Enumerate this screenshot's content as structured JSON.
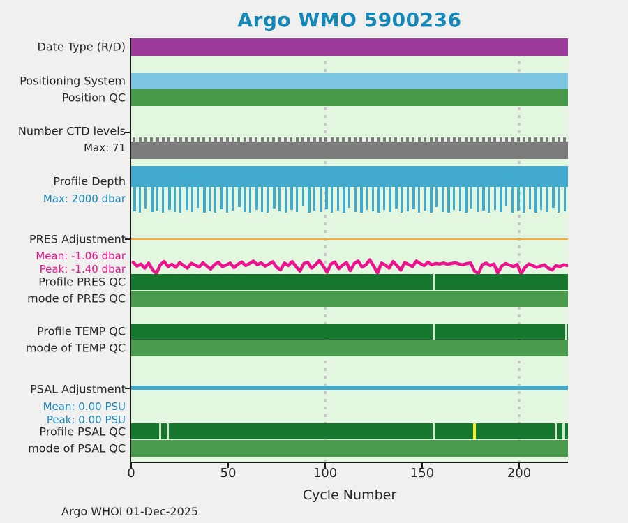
{
  "title": "Argo WMO 5900236",
  "footer": "Argo WHOI 01-Dec-2025",
  "colors": {
    "page_background": "#f0f0ef",
    "plot_background": "#e3f7e0",
    "axis": "#1a1a1a",
    "gridline": "#c9c9c9",
    "title_text": "#1287b8",
    "label_text": "#262626",
    "blue_text": "#1d87b8",
    "purple": "#9d3b9a",
    "light_blue": "#7ec5e2",
    "green": "#489a48",
    "gray": "#7b7b7b",
    "blue": "#42abcd",
    "orange": "#f7a93c",
    "magenta": "#ec118c",
    "dark_green": "#17772f",
    "mid_green": "#4a9a4e",
    "pale_break": "#cfe8c9",
    "yellow": "#f3ef2d"
  },
  "x_axis": {
    "label": "Cycle Number",
    "ticks": [
      0,
      50,
      100,
      150,
      200
    ],
    "range": [
      0,
      225
    ],
    "gridlines": [
      100,
      200
    ]
  },
  "chart_data": {
    "type": "multi-row-status-strips",
    "x_label": "Cycle Number",
    "x_range": [
      0,
      225
    ],
    "x_ticks": [
      0,
      50,
      100,
      150,
      200
    ],
    "gridlines_at": [
      100,
      200
    ],
    "rows": [
      {
        "id": "date_type",
        "label": "Date Type (R/D)",
        "type": "bar",
        "color_key": "purple",
        "coverage": [
          [
            0,
            225
          ]
        ]
      },
      {
        "id": "positioning_system",
        "label": "Positioning System",
        "type": "bar",
        "color_key": "light_blue",
        "coverage": [
          [
            0,
            225
          ]
        ]
      },
      {
        "id": "position_qc",
        "label": "Position QC",
        "type": "bar",
        "color_key": "green",
        "coverage": [
          [
            0,
            225
          ]
        ]
      },
      {
        "id": "n_ctd_levels",
        "label": "Number CTD levels",
        "sublabel": "Max: 71",
        "type": "bar-with-ticks",
        "color_key": "gray",
        "max_levels": 71,
        "tick_interval_cycles": 3
      },
      {
        "id": "profile_depth",
        "label": "Profile Depth",
        "sublabel": "Max: 2000 dbar",
        "type": "bar-with-spikes",
        "color_key": "blue",
        "max_dbar": 2000,
        "spike_interval_cycles": 3,
        "spike_fracs": [
          0.95,
          1.0,
          0.85,
          0.98,
          0.92,
          1.0,
          0.88,
          0.96,
          1.0,
          0.9,
          0.97,
          0.82,
          1.0,
          0.94,
          0.99,
          0.87,
          1.0,
          0.92,
          0.78,
          0.98,
          1.0,
          0.9,
          0.96,
          1.0,
          0.84,
          0.95,
          1.0,
          0.89,
          0.97,
          0.75,
          1.0,
          0.93,
          0.98,
          0.86,
          1.0,
          0.91,
          0.99,
          0.8,
          0.96,
          1.0,
          0.88,
          0.94,
          1.0,
          0.9,
          0.98,
          0.83,
          1.0,
          0.95,
          0.87,
          1.0,
          0.92,
          0.99,
          0.79,
          0.97,
          1.0,
          0.89,
          0.94,
          1.0,
          0.85,
          0.98,
          0.91,
          1.0,
          0.88,
          0.96,
          0.76,
          1.0,
          0.93,
          0.99,
          0.86,
          1.0,
          0.9,
          0.97,
          0.82,
          1.0,
          0.94
        ]
      },
      {
        "id": "pres_adjustment",
        "label": "PRES Adjustment",
        "sublabels": [
          "Mean: -1.06 dbar",
          "Peak: -1.40 dbar"
        ],
        "type": "line",
        "color_key": "magenta",
        "zero_line_color_key": "orange",
        "mean_dbar": -1.06,
        "peak_dbar": -1.4,
        "series": {
          "cycle_start": 1,
          "cycle_step": 2,
          "values_dbar": [
            -0.95,
            -1.1,
            -1.02,
            -1.18,
            -0.98,
            -1.25,
            -1.4,
            -1.05,
            -0.92,
            -1.12,
            -1.03,
            -1.15,
            -0.96,
            -1.08,
            -1.18,
            -0.99,
            -1.06,
            -1.14,
            -0.97,
            -1.1,
            -1.22,
            -1.04,
            -0.95,
            -1.12,
            -1.06,
            -0.98,
            -1.16,
            -1.03,
            -0.94,
            -1.08,
            -1.0,
            -0.9,
            -1.05,
            -0.97,
            -1.1,
            -1.02,
            -0.93,
            -1.15,
            -1.25,
            -0.98,
            -1.08,
            -0.92,
            -1.12,
            -1.3,
            -1.0,
            -0.95,
            -1.18,
            -1.05,
            -0.88,
            -1.1,
            -1.35,
            -1.02,
            -0.94,
            -1.2,
            -1.06,
            -0.96,
            -1.28,
            -1.0,
            -0.9,
            -1.14,
            -1.05,
            -0.85,
            -1.1,
            -1.38,
            -0.98,
            -1.06,
            -1.18,
            -0.92,
            -1.08,
            -1.26,
            -0.96,
            -1.04,
            -1.12,
            -0.9,
            -1.0,
            -1.08,
            -0.95,
            -1.05,
            -1.0,
            -1.02,
            -0.98,
            -1.03,
            -1.0,
            -0.97,
            -1.02,
            -1.05,
            -1.0,
            -0.98,
            -1.3,
            -1.4,
            -1.05,
            -0.98,
            -1.08,
            -1.02,
            -1.38,
            -1.1,
            -1.0,
            -1.06,
            -1.12,
            -1.04,
            -1.4,
            -1.15,
            -1.02,
            -1.08,
            -1.15,
            -1.1,
            -1.05,
            -1.18,
            -1.25,
            -1.08,
            -1.12,
            -1.05,
            -1.08
          ]
        }
      },
      {
        "id": "profile_pres_qc",
        "label": "Profile PRES QC",
        "type": "bar",
        "color_key": "dark_green",
        "breaks": [
          {
            "cycle": 156,
            "color_key": "pale_break"
          }
        ]
      },
      {
        "id": "mode_pres_qc",
        "label": "mode of PRES QC",
        "type": "bar",
        "color_key": "mid_green",
        "breaks": []
      },
      {
        "id": "profile_temp_qc",
        "label": "Profile TEMP QC",
        "type": "bar",
        "color_key": "dark_green",
        "breaks": [
          {
            "cycle": 156,
            "color_key": "pale_break"
          },
          {
            "cycle": 224,
            "color_key": "pale_break"
          }
        ]
      },
      {
        "id": "mode_temp_qc",
        "label": "mode of TEMP QC",
        "type": "bar",
        "color_key": "mid_green",
        "breaks": []
      },
      {
        "id": "psal_adjustment",
        "label": "PSAL Adjustment",
        "sublabels": [
          "Mean: 0.00 PSU",
          "Peak: 0.00 PSU"
        ],
        "type": "line",
        "color_key": "blue",
        "zero_line_color_key": "orange",
        "mean_psu": 0.0,
        "peak_psu": 0.0,
        "constant_value": 0
      },
      {
        "id": "profile_psal_qc",
        "label": "Profile PSAL QC",
        "type": "bar",
        "color_key": "dark_green",
        "breaks": [
          {
            "cycle": 15,
            "color_key": "pale_break"
          },
          {
            "cycle": 19,
            "color_key": "pale_break"
          },
          {
            "cycle": 156,
            "color_key": "pale_break"
          },
          {
            "cycle": 177,
            "color_key": "yellow"
          },
          {
            "cycle": 219,
            "color_key": "pale_break"
          },
          {
            "cycle": 223,
            "color_key": "pale_break"
          }
        ]
      },
      {
        "id": "mode_psal_qc",
        "label": "mode of PSAL QC",
        "type": "bar",
        "color_key": "mid_green",
        "breaks": []
      }
    ]
  }
}
